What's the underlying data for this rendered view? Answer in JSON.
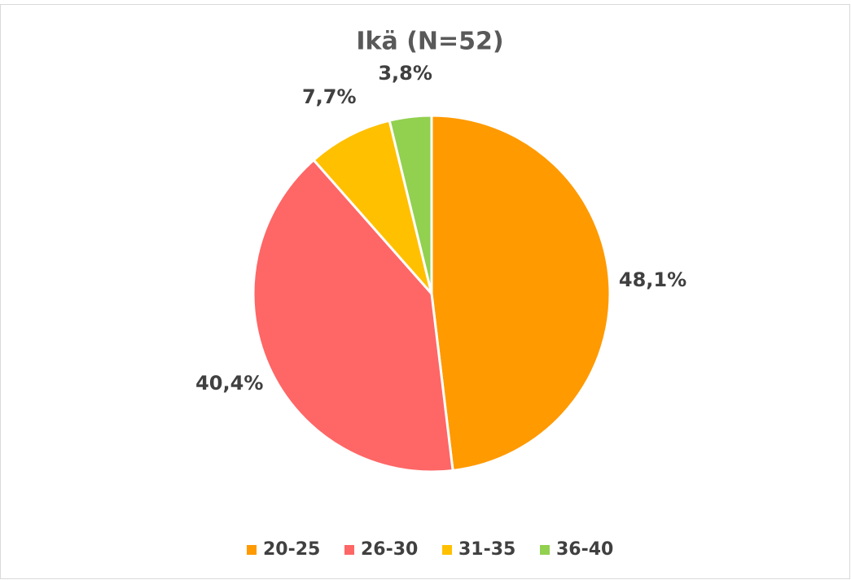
{
  "chart_data": {
    "type": "pie",
    "title": "Ikä (N=52)",
    "categories": [
      "20-25",
      "26-30",
      "31-35",
      "36-40"
    ],
    "values": [
      48.1,
      40.4,
      7.7,
      3.8
    ],
    "value_labels": [
      "48,1%",
      "40,4%",
      "7,7%",
      "3,8%"
    ],
    "colors": [
      "#ff9a00",
      "#ff6666",
      "#ffc000",
      "#92d050"
    ],
    "legend": "bottom"
  }
}
